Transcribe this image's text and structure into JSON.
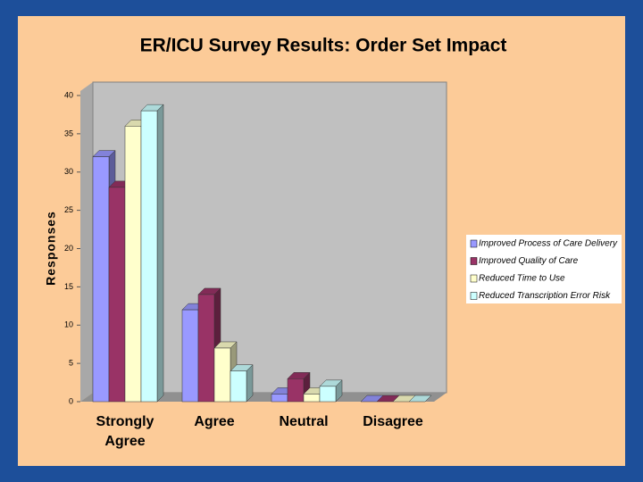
{
  "chart_data": {
    "type": "bar3d",
    "title": "ER/ICU Survey Results: Order Set Impact",
    "y_label": "Responses",
    "categories": [
      "Strongly Agree",
      "Agree",
      "Neutral",
      "Disagree"
    ],
    "series": [
      {
        "name": "Improved Process of Care Delivery",
        "color": "#9999ff",
        "values": [
          32,
          12,
          1,
          0
        ]
      },
      {
        "name": "Improved Quality of Care",
        "color": "#993366",
        "values": [
          28,
          14,
          3,
          0
        ]
      },
      {
        "name": "Reduced Time to Use",
        "color": "#ffffcc",
        "values": [
          36,
          7,
          1,
          0
        ]
      },
      {
        "name": "Reduced Transcription Error Risk",
        "color": "#ccffff",
        "values": [
          38,
          4,
          2,
          0
        ]
      }
    ],
    "ylim": [
      0,
      40
    ],
    "yticks": [
      0,
      5,
      10,
      15,
      20,
      25,
      30,
      35,
      40
    ]
  }
}
